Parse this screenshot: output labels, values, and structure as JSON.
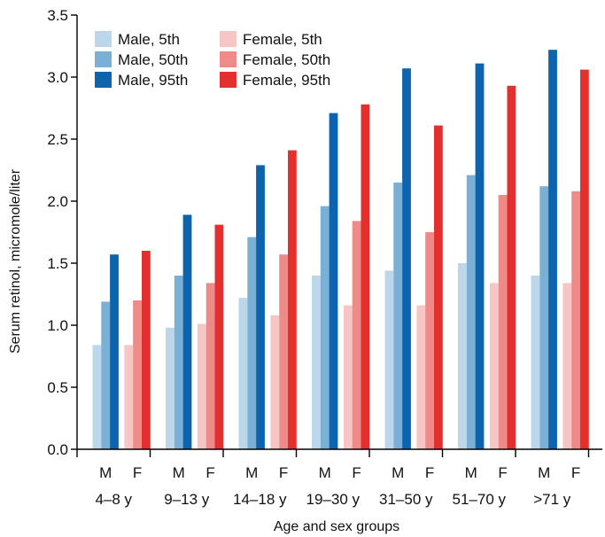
{
  "chart_data": {
    "type": "bar",
    "title": "",
    "xlabel": "Age and sex groups",
    "ylabel": "Serum retinol, micromole/liter",
    "ylim": [
      0,
      3.5
    ],
    "yticks": [
      "0.0",
      "0.5",
      "1.0",
      "1.5",
      "2.0",
      "2.5",
      "3.0",
      "3.5"
    ],
    "categories": [
      "4–8 y",
      "9–13 y",
      "14–18 y",
      "19–30 y",
      "31–50 y",
      "51–70 y",
      ">71 y"
    ],
    "sex_labels": [
      "M",
      "F"
    ],
    "legend_position": "top-left",
    "grid": false,
    "series": [
      {
        "name": "Male, 5th",
        "sex": "M",
        "color": "#bcd6ea",
        "values": [
          0.84,
          0.98,
          1.22,
          1.4,
          1.44,
          1.5,
          1.4
        ]
      },
      {
        "name": "Male, 50th",
        "sex": "M",
        "color": "#7aafd6",
        "values": [
          1.19,
          1.4,
          1.71,
          1.96,
          2.15,
          2.21,
          2.12
        ]
      },
      {
        "name": "Male, 95th",
        "sex": "M",
        "color": "#0b64ad",
        "values": [
          1.57,
          1.89,
          2.29,
          2.71,
          3.07,
          3.11,
          3.22
        ]
      },
      {
        "name": "Female, 5th",
        "sex": "F",
        "color": "#f7c5c3",
        "values": [
          0.84,
          1.01,
          1.08,
          1.16,
          1.16,
          1.34,
          1.34
        ]
      },
      {
        "name": "Female, 50th",
        "sex": "F",
        "color": "#ee8a88",
        "values": [
          1.2,
          1.34,
          1.57,
          1.84,
          1.75,
          2.05,
          2.08
        ]
      },
      {
        "name": "Female, 95th",
        "sex": "F",
        "color": "#e3302f",
        "values": [
          1.6,
          1.81,
          2.41,
          2.78,
          2.61,
          2.93,
          3.06
        ]
      }
    ]
  }
}
